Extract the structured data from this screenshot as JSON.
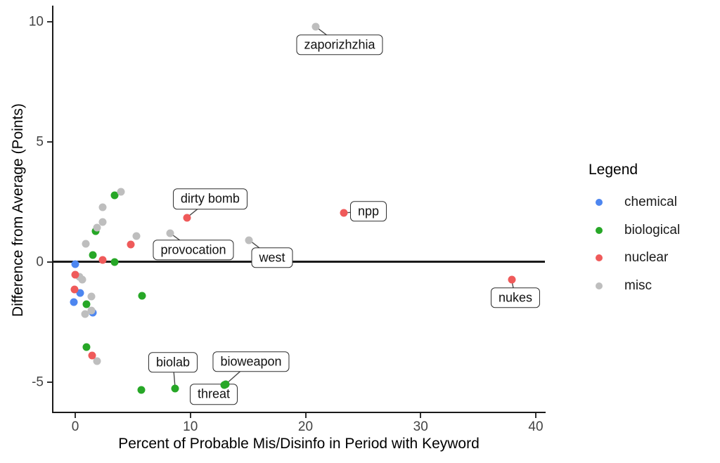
{
  "figure": {
    "y_axis_title": "Difference from Average (Points)",
    "x_axis_title": "Percent of Probable Mis/Disinfo in Period with Keyword",
    "legend": {
      "title": "Legend",
      "items": [
        {
          "label": "chemical"
        },
        {
          "label": "biological"
        },
        {
          "label": "nuclear"
        },
        {
          "label": "misc"
        }
      ]
    }
  },
  "chart_data": {
    "type": "scatter",
    "title": "",
    "xlabel": "Percent of Probable Mis/Disinfo in Period with Keyword",
    "ylabel": "Difference from Average (Points)",
    "xlim": [
      -1.9,
      40.8
    ],
    "ylim": [
      -6.3,
      10.7
    ],
    "x_ticks": [
      0,
      10,
      20,
      30,
      40
    ],
    "y_ticks": [
      -5,
      0,
      5,
      10
    ],
    "grid": false,
    "legend_position": "right",
    "reference_line_y": 0,
    "colors": {
      "chemical": "#4D86F0",
      "biological": "#27A727",
      "nuclear": "#EF5A5A",
      "misc": "#BEBEBE"
    },
    "draw_order": [
      "biological",
      "chemical",
      "misc",
      "nuclear"
    ],
    "series": [
      {
        "name": "chemical",
        "points": [
          [
            -0.02,
            -0.09
          ],
          [
            0.45,
            -1.3
          ],
          [
            -0.1,
            -1.67
          ],
          [
            1.55,
            -2.1
          ]
        ]
      },
      {
        "name": "biological",
        "points": [
          [
            3.39,
            2.78
          ],
          [
            1.8,
            1.3
          ],
          [
            1.55,
            0.3
          ],
          [
            3.39,
            0.01
          ],
          [
            0.97,
            -1.75
          ],
          [
            5.8,
            -1.41
          ],
          [
            0.96,
            -3.55
          ],
          [
            5.77,
            -5.32
          ],
          [
            8.68,
            -5.25
          ],
          [
            13.08,
            -5.08
          ],
          [
            12.95,
            -5.12
          ]
        ]
      },
      {
        "name": "nuclear",
        "points": [
          [
            23.3,
            2.05
          ],
          [
            9.7,
            1.85
          ],
          [
            37.9,
            -0.74
          ],
          [
            4.85,
            0.73
          ],
          [
            2.41,
            0.08
          ],
          [
            0.0,
            -0.52
          ],
          [
            -0.05,
            -1.14
          ],
          [
            1.45,
            -3.9
          ]
        ]
      },
      {
        "name": "misc",
        "points": [
          [
            20.9,
            9.79
          ],
          [
            15.1,
            0.92
          ],
          [
            8.25,
            1.2
          ],
          [
            5.32,
            1.07
          ],
          [
            3.97,
            2.91
          ],
          [
            2.41,
            2.27
          ],
          [
            2.37,
            1.67
          ],
          [
            1.92,
            1.42
          ],
          [
            0.94,
            0.76
          ],
          [
            0.35,
            -0.6
          ],
          [
            0.6,
            -0.73
          ],
          [
            1.4,
            -1.44
          ],
          [
            1.42,
            -2.03
          ],
          [
            0.85,
            -2.16
          ],
          [
            1.88,
            -4.13
          ]
        ]
      }
    ],
    "point_labels": [
      {
        "text": "zaporizhzhia",
        "point": [
          20.9,
          9.79
        ],
        "label_pos": [
          22.96,
          9.04
        ]
      },
      {
        "text": "dirty bomb",
        "point": [
          9.7,
          1.85
        ],
        "label_pos": [
          11.72,
          2.63
        ]
      },
      {
        "text": "npp",
        "point": [
          23.3,
          2.05
        ],
        "label_pos": [
          25.47,
          2.11
        ]
      },
      {
        "text": "provocation",
        "point": [
          8.25,
          1.2
        ],
        "label_pos": [
          10.26,
          0.5
        ]
      },
      {
        "text": "west",
        "point": [
          15.1,
          0.92
        ],
        "label_pos": [
          17.1,
          0.18
        ]
      },
      {
        "text": "nukes",
        "point": [
          37.9,
          -0.74
        ],
        "label_pos": [
          38.23,
          -1.49
        ]
      },
      {
        "text": "biolab",
        "point": [
          8.68,
          -5.25
        ],
        "label_pos": [
          8.49,
          -4.18
        ]
      },
      {
        "text": "bioweapon",
        "point": [
          13.08,
          -5.08
        ],
        "label_pos": [
          15.27,
          -4.15
        ]
      },
      {
        "text": "threat",
        "point": [
          12.95,
          -5.12
        ],
        "label_pos": [
          12.03,
          -5.5
        ]
      }
    ]
  }
}
